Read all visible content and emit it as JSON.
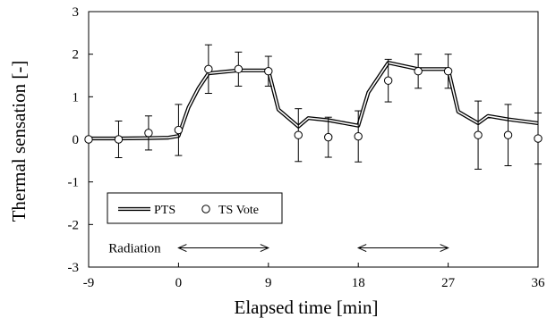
{
  "chart_data": {
    "type": "line",
    "title": "",
    "xlabel": "Elapsed time  [min]",
    "ylabel": "Thermal sensation [-]",
    "xlim": [
      -9,
      36
    ],
    "ylim": [
      -3,
      3
    ],
    "x_ticks": [
      -9,
      0,
      9,
      18,
      27,
      36
    ],
    "y_ticks": [
      -3,
      -2,
      -1,
      0,
      1,
      2,
      3
    ],
    "x_tick_labels": [
      "-9",
      "0",
      "9",
      "18",
      "27",
      "36"
    ],
    "y_tick_labels": [
      "-3",
      "-2",
      "-1",
      "0",
      "1",
      "2",
      "3"
    ],
    "grid": false,
    "legend_position": "bottom-left",
    "series": [
      {
        "name": "PTS",
        "kind": "line",
        "x": [
          -9,
          -6,
          -3,
          -1,
          0,
          1,
          2,
          3,
          6,
          9,
          10,
          12,
          13,
          15,
          18,
          19,
          21,
          24,
          27,
          28,
          30,
          31,
          33,
          36
        ],
        "y": [
          0.02,
          0.02,
          0.03,
          0.04,
          0.08,
          0.75,
          1.2,
          1.55,
          1.62,
          1.62,
          0.7,
          0.3,
          0.5,
          0.45,
          0.32,
          1.1,
          1.8,
          1.65,
          1.65,
          0.65,
          0.38,
          0.55,
          0.47,
          0.38
        ]
      },
      {
        "name": "TS Vote",
        "kind": "points_with_error",
        "x": [
          -9,
          -6,
          -3,
          0,
          3,
          6,
          9,
          12,
          15,
          18,
          21,
          24,
          27,
          30,
          33,
          36
        ],
        "y": [
          0.0,
          0.0,
          0.15,
          0.22,
          1.65,
          1.65,
          1.6,
          0.1,
          0.05,
          0.07,
          1.38,
          1.6,
          1.6,
          0.1,
          0.1,
          0.02
        ],
        "error": [
          0.0,
          0.43,
          0.4,
          0.6,
          0.57,
          0.4,
          0.35,
          0.62,
          0.47,
          0.6,
          0.5,
          0.4,
          0.4,
          0.8,
          0.72,
          0.6
        ]
      }
    ],
    "annotations": [
      {
        "text": "Radiation",
        "x": -7,
        "y": -2.55
      },
      {
        "type": "double-arrow",
        "x_start": 0,
        "x_end": 9,
        "y": -2.55
      },
      {
        "type": "double-arrow",
        "x_start": 18,
        "x_end": 27,
        "y": -2.55
      }
    ]
  }
}
